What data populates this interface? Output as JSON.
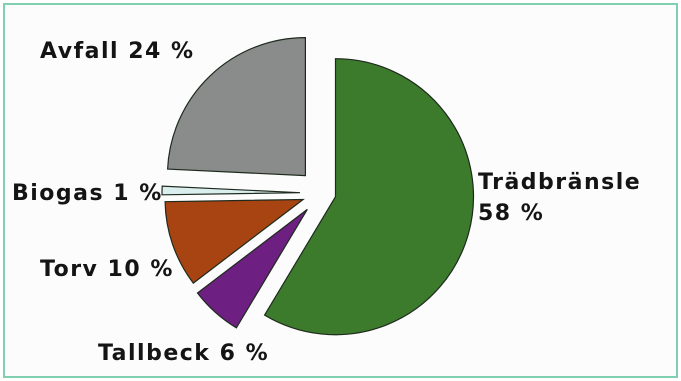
{
  "chart_data": {
    "type": "pie",
    "exploded": true,
    "slices": [
      {
        "label": "Trädbränsle",
        "value": 58,
        "value_text": "58 %",
        "color": "#3c7a2c"
      },
      {
        "label": "Tallbeck",
        "value": 6,
        "value_text": "Tallbeck 6 %",
        "color": "#6e1f82"
      },
      {
        "label": "Torv",
        "value": 10,
        "value_text": "Torv 10 %",
        "color": "#a84412"
      },
      {
        "label": "Biogas",
        "value": 1,
        "value_text": "Biogas 1 %",
        "color": "#dbeeee"
      },
      {
        "label": "Avfall",
        "value": 24,
        "value_text": "Avfall 24 %",
        "color": "#8a8c8c"
      }
    ]
  }
}
